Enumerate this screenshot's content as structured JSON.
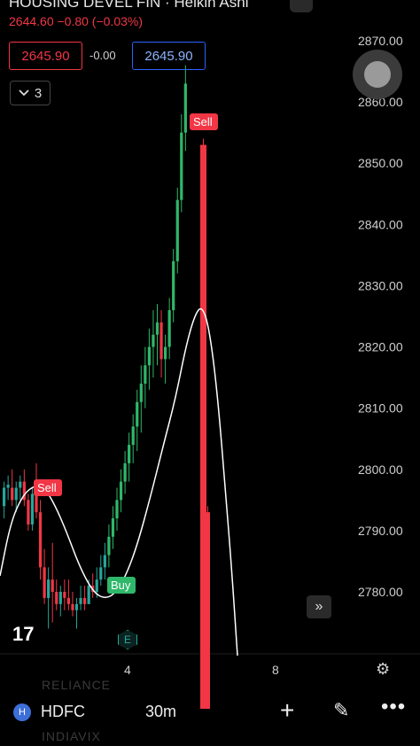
{
  "header": {
    "title": "HOUSING DEVEL FIN · Heikin Ashi",
    "price_line": "2644.60 −0.80 (−0.03%)"
  },
  "trade": {
    "sell_price": "2645.90",
    "spread": "-0.00",
    "buy_price": "2645.90"
  },
  "indicators_toggle": {
    "count": "3",
    "icon": "chevron-down-icon"
  },
  "price_axis": {
    "labels": [
      "2870.00",
      "2860.00",
      "2850.00",
      "2840.00",
      "2830.00",
      "2820.00",
      "2810.00",
      "2800.00",
      "2790.00",
      "2780.00"
    ]
  },
  "time_axis": {
    "labels": [
      "4",
      "8"
    ]
  },
  "chart_annotations": {
    "sell_label": "Sell",
    "buy_label": "Buy",
    "sell_label_2": "Sell"
  },
  "logo": {
    "text": "17",
    "icon": "tradingview-logo-icon"
  },
  "earnings_badge": "E",
  "ghost_symbols": {
    "top": "RELIANCE",
    "bottom": "INDIAVIX"
  },
  "bottom_bar": {
    "symbol_icon_text": "H",
    "symbol": "HDFC",
    "interval": "30m"
  },
  "colors": {
    "up": "#26a69a",
    "up_bright": "#2fb86a",
    "down": "#f23645",
    "ma_line": "#ffffff",
    "buy_label_bg": "#2fb86a",
    "sell_label_bg": "#f23645"
  },
  "chart_data": {
    "type": "candlestick",
    "title": "",
    "ylim": [
      2772,
      2872
    ],
    "y_ticks": [
      2870,
      2860,
      2850,
      2840,
      2830,
      2820,
      2810,
      2800,
      2790,
      2780
    ],
    "candles": [
      {
        "o": 2794,
        "h": 2798,
        "l": 2792,
        "c": 2797
      },
      {
        "o": 2797,
        "h": 2799,
        "l": 2795,
        "c": 2797.5
      },
      {
        "o": 2797,
        "h": 2800,
        "l": 2794,
        "c": 2795
      },
      {
        "o": 2795,
        "h": 2798,
        "l": 2793,
        "c": 2797
      },
      {
        "o": 2797,
        "h": 2799,
        "l": 2795,
        "c": 2798
      },
      {
        "o": 2798,
        "h": 2800,
        "l": 2794,
        "c": 2795
      },
      {
        "o": 2795,
        "h": 2796,
        "l": 2790,
        "c": 2791
      },
      {
        "o": 2791,
        "h": 2797,
        "l": 2790,
        "c": 2796
      },
      {
        "o": 2796,
        "h": 2801,
        "l": 2792,
        "c": 2793
      },
      {
        "o": 2793,
        "h": 2795,
        "l": 2782,
        "c": 2784
      },
      {
        "o": 2784,
        "h": 2787,
        "l": 2778,
        "c": 2779
      },
      {
        "o": 2779,
        "h": 2784,
        "l": 2774,
        "c": 2782
      },
      {
        "o": 2782,
        "h": 2788,
        "l": 2775,
        "c": 2780
      },
      {
        "o": 2780,
        "h": 2782,
        "l": 2777,
        "c": 2778
      },
      {
        "o": 2778,
        "h": 2781,
        "l": 2776,
        "c": 2780
      },
      {
        "o": 2780,
        "h": 2782,
        "l": 2777,
        "c": 2779
      },
      {
        "o": 2779,
        "h": 2782,
        "l": 2777,
        "c": 2778
      },
      {
        "o": 2778,
        "h": 2780,
        "l": 2776,
        "c": 2777
      },
      {
        "o": 2777,
        "h": 2779,
        "l": 2774,
        "c": 2778
      },
      {
        "o": 2778,
        "h": 2781,
        "l": 2777,
        "c": 2779
      },
      {
        "o": 2779,
        "h": 2781,
        "l": 2777,
        "c": 2778
      },
      {
        "o": 2778,
        "h": 2782,
        "l": 2778,
        "c": 2781
      },
      {
        "o": 2781,
        "h": 2783,
        "l": 2779,
        "c": 2780
      },
      {
        "o": 2780,
        "h": 2784,
        "l": 2779,
        "c": 2782
      },
      {
        "o": 2782,
        "h": 2786,
        "l": 2781,
        "c": 2784
      },
      {
        "o": 2784,
        "h": 2788,
        "l": 2782,
        "c": 2786
      },
      {
        "o": 2786,
        "h": 2791,
        "l": 2784,
        "c": 2789
      },
      {
        "o": 2789,
        "h": 2794,
        "l": 2787,
        "c": 2792
      },
      {
        "o": 2792,
        "h": 2797,
        "l": 2790,
        "c": 2795
      },
      {
        "o": 2795,
        "h": 2800,
        "l": 2793,
        "c": 2798
      },
      {
        "o": 2798,
        "h": 2803,
        "l": 2796,
        "c": 2801
      },
      {
        "o": 2801,
        "h": 2806,
        "l": 2798,
        "c": 2804
      },
      {
        "o": 2804,
        "h": 2809,
        "l": 2801,
        "c": 2807
      },
      {
        "o": 2807,
        "h": 2813,
        "l": 2803,
        "c": 2811
      },
      {
        "o": 2811,
        "h": 2817,
        "l": 2806,
        "c": 2814
      },
      {
        "o": 2814,
        "h": 2820,
        "l": 2810,
        "c": 2817
      },
      {
        "o": 2817,
        "h": 2823,
        "l": 2813,
        "c": 2820
      },
      {
        "o": 2820,
        "h": 2826,
        "l": 2815,
        "c": 2822
      },
      {
        "o": 2822,
        "h": 2827,
        "l": 2817,
        "c": 2824
      },
      {
        "o": 2824,
        "h": 2826,
        "l": 2815,
        "c": 2818
      },
      {
        "o": 2818,
        "h": 2822,
        "l": 2814,
        "c": 2820
      },
      {
        "o": 2820,
        "h": 2828,
        "l": 2818,
        "c": 2826
      },
      {
        "o": 2826,
        "h": 2836,
        "l": 2824,
        "c": 2834
      },
      {
        "o": 2834,
        "h": 2846,
        "l": 2832,
        "c": 2844
      },
      {
        "o": 2844,
        "h": 2858,
        "l": 2842,
        "c": 2855
      },
      {
        "o": 2855,
        "h": 2866,
        "l": 2852,
        "c": 2863
      },
      {
        "o": 2853,
        "h": 2854,
        "l": 2758,
        "c": 2760
      },
      {
        "o": 2793,
        "h": 2794,
        "l": 2758,
        "c": 2760
      }
    ],
    "ma_line": {
      "name": ""
    },
    "signals": [
      {
        "label": "Sell",
        "index": 7,
        "price": 2797
      },
      {
        "label": "Buy",
        "index": 22,
        "price": 2780
      },
      {
        "label": "Sell",
        "index": 45,
        "price": 2859
      }
    ],
    "x_ticks": [
      "4",
      "8"
    ]
  }
}
